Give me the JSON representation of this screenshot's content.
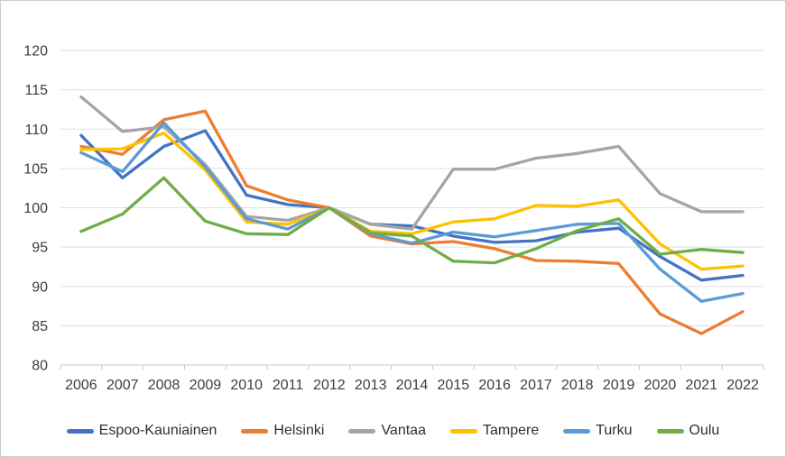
{
  "chart_data": {
    "type": "line",
    "title": "",
    "xlabel": "",
    "ylabel": "",
    "categories": [
      "2006",
      "2007",
      "2008",
      "2009",
      "2010",
      "2011",
      "2012",
      "2013",
      "2014",
      "2015",
      "2016",
      "2017",
      "2018",
      "2019",
      "2020",
      "2021",
      "2022"
    ],
    "series": [
      {
        "name": "Espoo-Kauniainen",
        "color": "#4472C4",
        "values": [
          109.2,
          103.8,
          107.8,
          109.8,
          101.6,
          100.4,
          100.0,
          97.9,
          97.7,
          96.4,
          95.6,
          95.8,
          96.9,
          97.4,
          93.8,
          90.8,
          91.4
        ]
      },
      {
        "name": "Helsinki",
        "color": "#ED7D31",
        "values": [
          107.8,
          106.8,
          111.2,
          112.3,
          102.8,
          101.0,
          100.0,
          96.4,
          95.4,
          95.7,
          94.8,
          93.3,
          93.2,
          92.9,
          86.5,
          84.0,
          86.8
        ]
      },
      {
        "name": "Vantaa",
        "color": "#A5A5A5",
        "values": [
          114.1,
          109.7,
          110.3,
          105.5,
          98.9,
          98.4,
          100.0,
          97.9,
          97.3,
          104.9,
          104.9,
          106.3,
          106.9,
          107.8,
          101.8,
          99.5,
          99.5
        ]
      },
      {
        "name": "Tampere",
        "color": "#FFC000",
        "values": [
          107.4,
          107.5,
          109.5,
          104.8,
          98.2,
          97.9,
          100.0,
          97.0,
          96.7,
          98.2,
          98.6,
          100.3,
          100.2,
          101.0,
          95.4,
          92.2,
          92.6
        ]
      },
      {
        "name": "Turku",
        "color": "#5B9BD5",
        "values": [
          107.0,
          104.6,
          110.8,
          105.2,
          98.6,
          97.3,
          100.0,
          96.7,
          95.5,
          96.9,
          96.3,
          97.1,
          97.9,
          98.0,
          92.2,
          88.1,
          89.1
        ]
      },
      {
        "name": "Oulu",
        "color": "#70AD47",
        "values": [
          97.0,
          99.2,
          103.8,
          98.3,
          96.7,
          96.6,
          100.0,
          96.8,
          96.4,
          93.2,
          93.0,
          94.8,
          97.1,
          98.6,
          94.1,
          94.7,
          94.3
        ]
      }
    ],
    "ylim": [
      80,
      120
    ],
    "ytick_step": 5,
    "grid": "horizontal",
    "gridline_color": "#dae0e9",
    "axis_line_color": "#c3c8d0",
    "tick_label_color": "#3d3d3d",
    "legend_position": "bottom"
  }
}
